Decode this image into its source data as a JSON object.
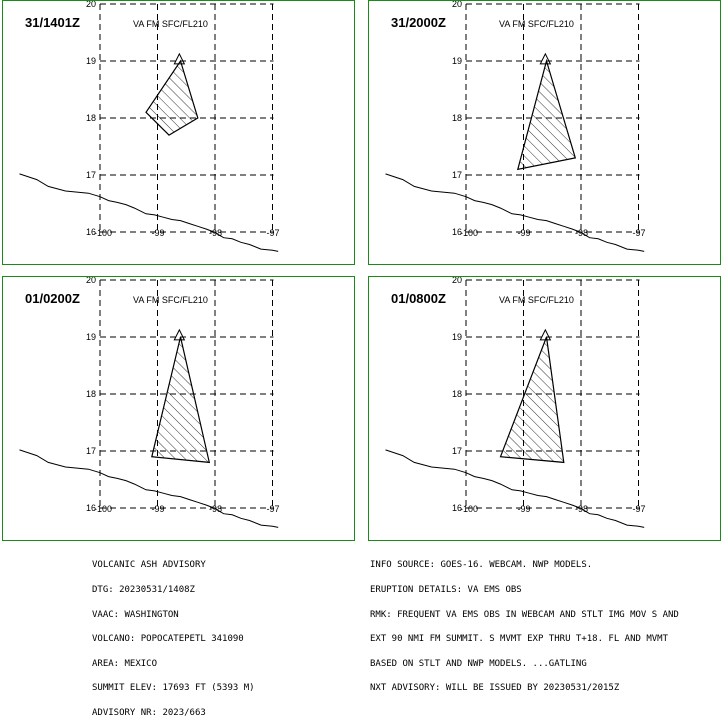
{
  "panels": [
    {
      "time": "31/1401Z",
      "level": "VA FM SFC/FL210",
      "polygon": [
        [
          -98.6,
          19.0
        ],
        [
          -98.3,
          18.0
        ],
        [
          -98.8,
          17.7
        ],
        [
          -99.2,
          18.1
        ]
      ]
    },
    {
      "time": "31/2000Z",
      "level": "VA FM SFC/FL210",
      "polygon": [
        [
          -98.6,
          19.0
        ],
        [
          -98.1,
          17.3
        ],
        [
          -99.1,
          17.1
        ]
      ]
    },
    {
      "time": "01/0200Z",
      "level": "VA FM SFC/FL210",
      "polygon": [
        [
          -98.6,
          19.0
        ],
        [
          -98.1,
          16.8
        ],
        [
          -99.1,
          16.9
        ]
      ]
    },
    {
      "time": "01/0800Z",
      "level": "VA FM SFC/FL210",
      "polygon": [
        [
          -98.6,
          19.0
        ],
        [
          -98.3,
          16.8
        ],
        [
          -99.4,
          16.9
        ]
      ]
    }
  ],
  "axis_labels": {
    "lat": [
      "20",
      "19",
      "18",
      "17",
      "16"
    ],
    "lon": [
      "-100",
      "-99",
      "-98",
      "-97"
    ]
  },
  "volcano": {
    "lat": 19.02,
    "lon": -98.62
  },
  "advisory": {
    "lines": [
      "VOLCANIC ASH ADVISORY",
      "DTG: 20230531/1408Z",
      "VAAC: WASHINGTON",
      "VOLCANO: POPOCATEPETL 341090",
      "AREA: MEXICO",
      "SUMMIT ELEV: 17693 FT (5393 M)",
      "ADVISORY NR: 2023/663"
    ]
  },
  "info": {
    "lines": [
      "INFO SOURCE: GOES-16. WEBCAM. NWP MODELS.",
      "ERUPTION DETAILS: VA EMS OBS",
      "RMK: FREQUENT VA EMS OBS IN WEBCAM AND STLT IMG MOV S AND",
      "EXT 90 NMI FM SUMMIT. S MVMT EXP THRU T+18. FL AND MVMT",
      "BASED ON STLT AND NWP MODELS. ...GATLING",
      "NXT ADVISORY: WILL BE ISSUED BY 20230531/2015Z"
    ]
  }
}
